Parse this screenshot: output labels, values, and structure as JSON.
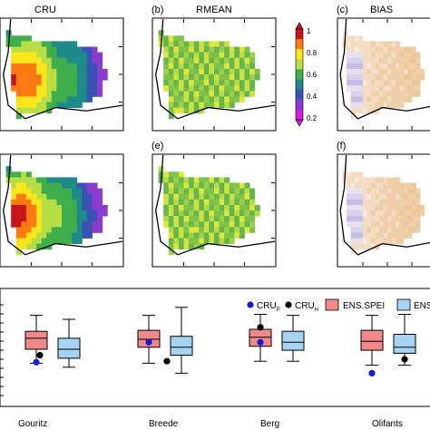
{
  "panels": [
    {
      "letter": "",
      "title": "CRU",
      "kind": "map",
      "palette": "rainbow"
    },
    {
      "letter": "(b)",
      "title": "RMEAN",
      "kind": "map",
      "palette": "greenyellow"
    },
    {
      "letter": "(c)",
      "title": "BIAS",
      "kind": "map",
      "palette": "bias"
    },
    {
      "letter": "",
      "title": "",
      "kind": "map",
      "palette": "rainbow"
    },
    {
      "letter": "(e)",
      "title": "",
      "kind": "map",
      "palette": "greenyellow"
    },
    {
      "letter": "(f)",
      "title": "",
      "kind": "map",
      "palette": "bias"
    }
  ],
  "colorbar": {
    "ticks": [
      "1",
      "0.8",
      "0.6",
      "0.4",
      "0.2"
    ],
    "colors": [
      "#c8141c",
      "#ff7a12",
      "#ffe61a",
      "#b7df45",
      "#3fae4d",
      "#1e8a8a",
      "#3a53b3",
      "#8a3ccf",
      "#d21ee0"
    ]
  },
  "chart_data": {
    "type": "box",
    "categories": [
      "Gouritz",
      "Breede",
      "Berg",
      "Olifants"
    ],
    "legend": {
      "cru_p": {
        "label": "CRU",
        "sub": "P",
        "color": "#1a1ad6"
      },
      "cru_h": {
        "label": "CRU",
        "sub": "H",
        "color": "#000000"
      },
      "ens_spei": {
        "label": "ENS.SPEI",
        "color": "#f0898a"
      },
      "ens_other": {
        "label": "ENS",
        "color": "#a7d3f3"
      }
    },
    "ylim": [
      0,
      1
    ],
    "series": [
      {
        "name": "ENS.SPEI",
        "color": "#f0898a",
        "boxes": [
          {
            "whisker_low": 0.36,
            "q1": 0.5,
            "median": 0.61,
            "q3": 0.68,
            "whisker_high": 0.84
          },
          {
            "whisker_low": 0.36,
            "q1": 0.52,
            "median": 0.6,
            "q3": 0.69,
            "whisker_high": 0.84
          },
          {
            "whisker_low": 0.38,
            "q1": 0.53,
            "median": 0.62,
            "q3": 0.7,
            "whisker_high": 0.85
          },
          {
            "whisker_low": 0.34,
            "q1": 0.49,
            "median": 0.58,
            "q3": 0.69,
            "whisker_high": 0.84
          }
        ]
      },
      {
        "name": "ENS",
        "color": "#a7d3f3",
        "boxes": [
          {
            "whisker_low": 0.32,
            "q1": 0.41,
            "median": 0.5,
            "q3": 0.61,
            "whisker_high": 0.8
          },
          {
            "whisker_low": 0.26,
            "q1": 0.44,
            "median": 0.52,
            "q3": 0.63,
            "whisker_high": 0.92
          },
          {
            "whisker_low": 0.38,
            "q1": 0.49,
            "median": 0.57,
            "q3": 0.68,
            "whisker_high": 0.84
          },
          {
            "whisker_low": 0.34,
            "q1": 0.46,
            "median": 0.52,
            "q3": 0.65,
            "whisker_high": 0.85
          }
        ]
      }
    ],
    "points": {
      "cru_p": [
        0.37,
        0.57,
        0.57,
        0.26
      ],
      "cru_h": [
        0.44,
        0.38,
        0.72,
        0.4
      ]
    },
    "category_labels": [
      "Gouritz",
      "Breede",
      "Berg",
      "Olifants"
    ]
  }
}
